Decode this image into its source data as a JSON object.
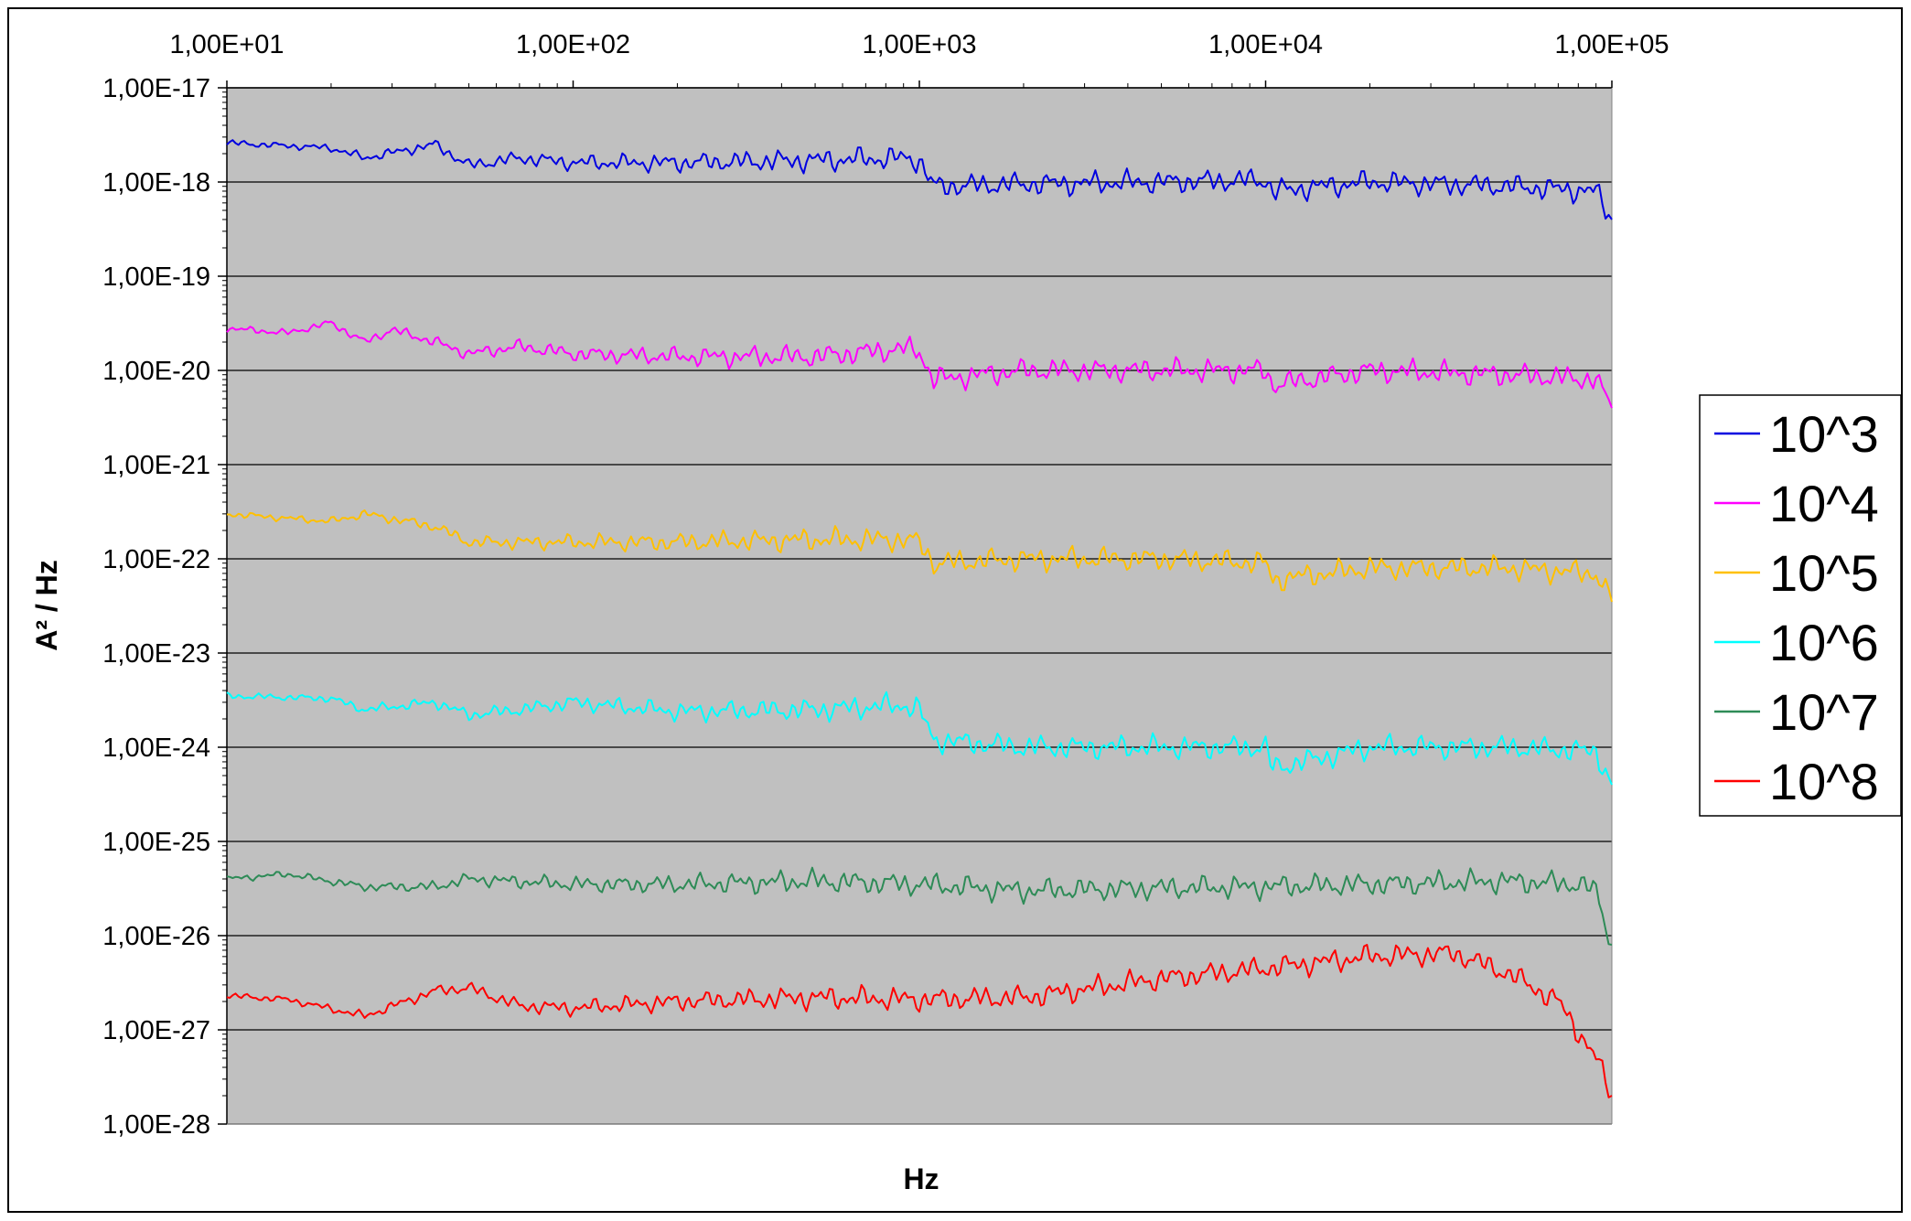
{
  "chart_data": {
    "type": "line",
    "title": "",
    "xlabel": "Hz",
    "ylabel": "A² / Hz",
    "x_scale": "log",
    "y_scale": "log",
    "xlim": [
      10,
      100000
    ],
    "ylim": [
      1e-28,
      1e-17
    ],
    "x_tick_values": [
      10,
      100,
      1000,
      10000,
      100000
    ],
    "x_tick_labels": [
      "1,00E+01",
      "1,00E+02",
      "1,00E+03",
      "1,00E+04",
      "1,00E+05"
    ],
    "y_tick_values": [
      1e-17,
      1e-18,
      1e-19,
      1e-20,
      1e-21,
      1e-22,
      1e-23,
      1e-24,
      1e-25,
      1e-26,
      1e-27,
      1e-28
    ],
    "y_tick_labels": [
      "1,00E-17",
      "1,00E-18",
      "1,00E-19",
      "1,00E-20",
      "1,00E-21",
      "1,00E-22",
      "1,00E-23",
      "1,00E-24",
      "1,00E-25",
      "1,00E-26",
      "1,00E-27",
      "1,00E-28"
    ],
    "grid": "horizontal major",
    "plot_background": "#c0c0c0",
    "legend_position": "right",
    "series": [
      {
        "name": "10^3",
        "color": "#0000e0",
        "x": [
          10,
          20,
          25,
          40,
          50,
          70,
          100,
          200,
          500,
          900,
          1000,
          1100,
          2000,
          5000,
          10000,
          10500,
          20000,
          50000,
          90000,
          100000
        ],
        "y": [
          2.6e-18,
          2.3e-18,
          1.8e-18,
          2.5e-18,
          1.5e-18,
          1.8e-18,
          1.6e-18,
          1.6e-18,
          1.7e-18,
          1.8e-18,
          1.7e-18,
          9e-19,
          9.5e-19,
          1e-18,
          1.05e-18,
          8e-19,
          1e-18,
          9e-19,
          8e-19,
          4e-19
        ]
      },
      {
        "name": "10^4",
        "color": "#ff00ff",
        "x": [
          10,
          15,
          20,
          25,
          30,
          40,
          50,
          70,
          100,
          200,
          500,
          900,
          1000,
          1100,
          2000,
          5000,
          10000,
          10500,
          20000,
          50000,
          90000,
          100000
        ],
        "y": [
          2.8e-20,
          2.5e-20,
          3.2e-20,
          2e-20,
          2.7e-20,
          2e-20,
          1.5e-20,
          1.8e-20,
          1.5e-20,
          1.4e-20,
          1.4e-20,
          1.7e-20,
          1.6e-20,
          8e-21,
          1e-20,
          1e-20,
          1e-20,
          7e-21,
          1e-20,
          9e-21,
          8e-21,
          4e-21
        ]
      },
      {
        "name": "10^5",
        "color": "#ffc000",
        "x": [
          10,
          20,
          25,
          40,
          50,
          100,
          200,
          500,
          900,
          1000,
          1100,
          2000,
          5000,
          10000,
          10500,
          20000,
          50000,
          90000,
          100000
        ],
        "y": [
          3e-22,
          2.5e-22,
          3e-22,
          2.2e-22,
          1.5e-22,
          1.5e-22,
          1.5e-22,
          1.6e-22,
          1.6e-22,
          1.5e-22,
          9e-23,
          1e-22,
          1e-22,
          9e-23,
          6e-23,
          8e-23,
          8e-23,
          7e-23,
          3.5e-23
        ]
      },
      {
        "name": "10^6",
        "color": "#00ffff",
        "x": [
          10,
          20,
          25,
          40,
          50,
          70,
          100,
          200,
          500,
          900,
          1000,
          1100,
          2000,
          5000,
          10000,
          10500,
          20000,
          50000,
          90000,
          100000
        ],
        "y": [
          3.5e-24,
          3.3e-24,
          2.5e-24,
          3e-24,
          2.2e-24,
          2.5e-24,
          3e-24,
          2.4e-24,
          2.5e-24,
          2.8e-24,
          2.5e-24,
          1.2e-24,
          1e-24,
          1e-24,
          1e-24,
          6e-25,
          1e-24,
          1e-24,
          9e-25,
          4e-25
        ]
      },
      {
        "name": "10^7",
        "color": "#2e8b57",
        "x": [
          10,
          15,
          25,
          40,
          50,
          100,
          200,
          500,
          1000,
          2000,
          5000,
          10000,
          20000,
          50000,
          80000,
          90000,
          100000
        ],
        "y": [
          4e-26,
          4.5e-26,
          3.3e-26,
          3.3e-26,
          4e-26,
          3.5e-26,
          3.5e-26,
          3.8e-26,
          3.5e-26,
          3e-26,
          3.2e-26,
          3.3e-26,
          3.5e-26,
          3.8e-26,
          3.5e-26,
          3e-26,
          8e-27
        ]
      },
      {
        "name": "10^8",
        "color": "#ff0000",
        "x": [
          10,
          15,
          25,
          40,
          50,
          70,
          100,
          200,
          500,
          1000,
          2000,
          5000,
          10000,
          20000,
          35000,
          50000,
          70000,
          90000,
          100000
        ],
        "y": [
          2.3e-27,
          2.1e-27,
          1.4e-27,
          2.6e-27,
          2.8e-27,
          1.8e-27,
          1.7e-27,
          2e-27,
          2.2e-27,
          2.1e-27,
          2.2e-27,
          3.5e-27,
          4.5e-27,
          6e-27,
          6.5e-27,
          4e-27,
          2e-27,
          5e-28,
          2e-28
        ]
      }
    ]
  }
}
